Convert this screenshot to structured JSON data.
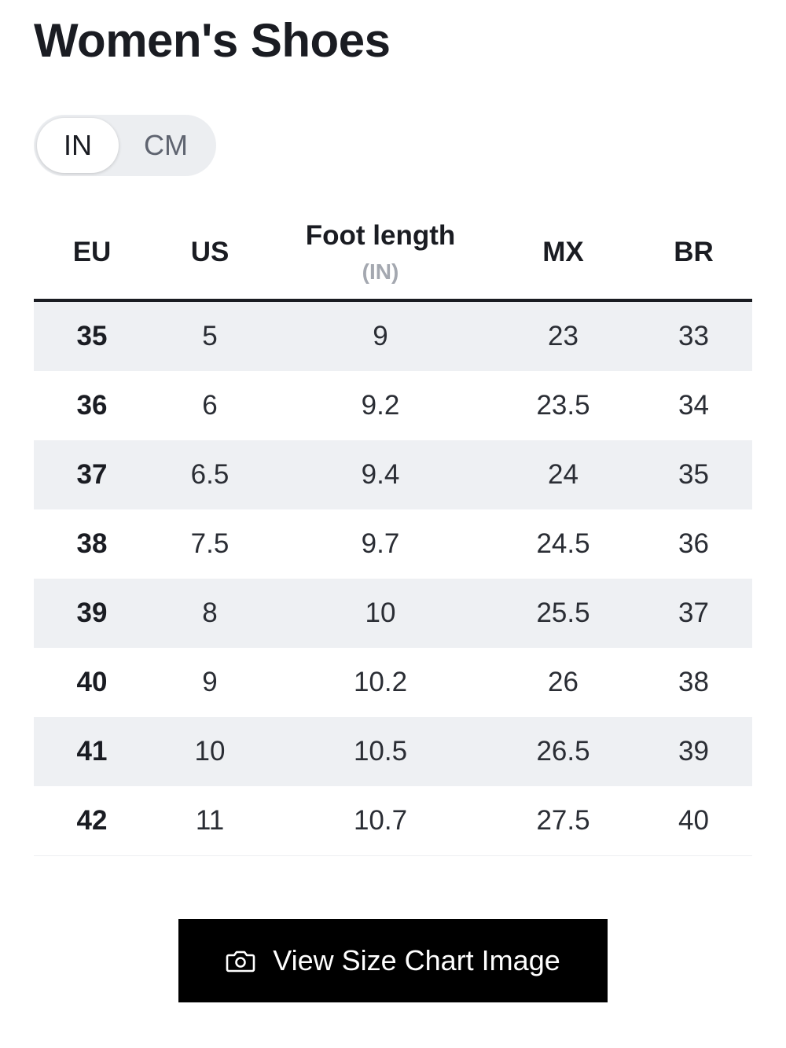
{
  "page": {
    "title": "Women's Shoes"
  },
  "unit_toggle": {
    "options": [
      "IN",
      "CM"
    ],
    "selected": "IN"
  },
  "table": {
    "headers": {
      "eu": "EU",
      "us": "US",
      "foot_length": "Foot length",
      "foot_length_unit": "(IN)",
      "mx": "MX",
      "br": "BR"
    },
    "rows": [
      {
        "eu": "35",
        "us": "5",
        "foot": "9",
        "mx": "23",
        "br": "33"
      },
      {
        "eu": "36",
        "us": "6",
        "foot": "9.2",
        "mx": "23.5",
        "br": "34"
      },
      {
        "eu": "37",
        "us": "6.5",
        "foot": "9.4",
        "mx": "24",
        "br": "35"
      },
      {
        "eu": "38",
        "us": "7.5",
        "foot": "9.7",
        "mx": "24.5",
        "br": "36"
      },
      {
        "eu": "39",
        "us": "8",
        "foot": "10",
        "mx": "25.5",
        "br": "37"
      },
      {
        "eu": "40",
        "us": "9",
        "foot": "10.2",
        "mx": "26",
        "br": "38"
      },
      {
        "eu": "41",
        "us": "10",
        "foot": "10.5",
        "mx": "26.5",
        "br": "39"
      },
      {
        "eu": "42",
        "us": "11",
        "foot": "10.7",
        "mx": "27.5",
        "br": "40"
      }
    ]
  },
  "button": {
    "label": "View Size Chart Image",
    "icon": "camera-icon"
  }
}
